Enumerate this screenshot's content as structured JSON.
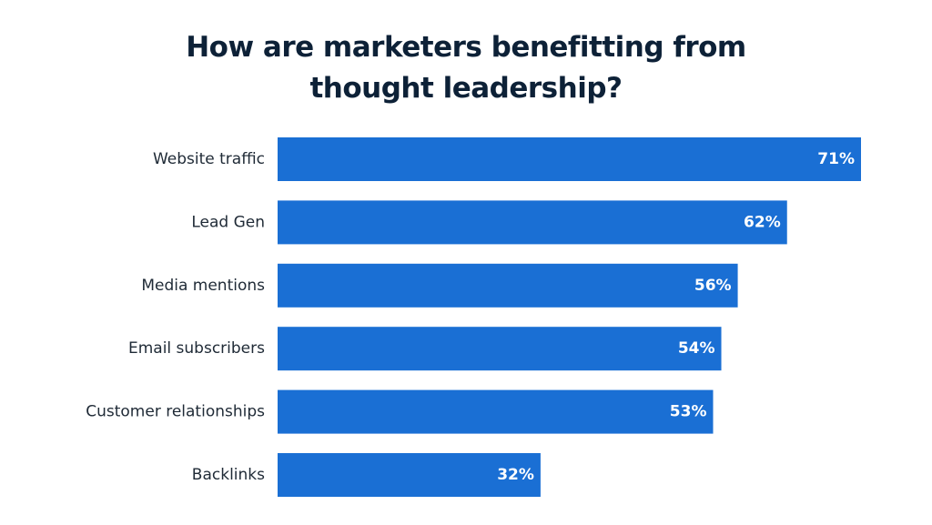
{
  "chart_data": {
    "type": "bar",
    "orientation": "horizontal",
    "title": "How are marketers benefitting from thought leadership?",
    "categories": [
      "Website traffic",
      "Lead Gen",
      "Media mentions",
      "Email subscribers",
      "Customer relationships",
      "Backlinks"
    ],
    "values": [
      71,
      62,
      56,
      54,
      53,
      32
    ],
    "value_labels": [
      "71%",
      "62%",
      "56%",
      "54%",
      "53%",
      "32%"
    ],
    "color": "#1a6fd4"
  }
}
